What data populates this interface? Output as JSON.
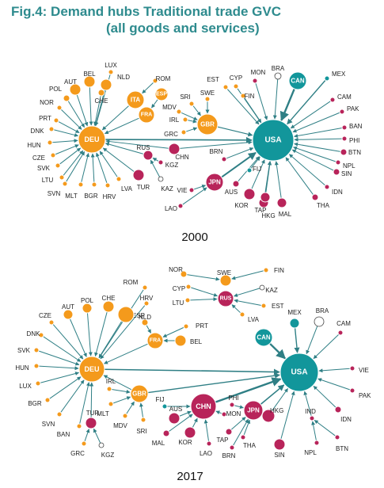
{
  "title": {
    "line1": "Fig.4: Demand hubs Traditional trade GVC",
    "line2": "(all goods and services)"
  },
  "colors": {
    "orange": "#f49a1c",
    "teal": "#12969b",
    "crimson": "#b8245a",
    "edge": "#2f7f85",
    "title": "#2e8b8e"
  },
  "panels": [
    {
      "year": "2000",
      "nodes": [
        {
          "id": "DEU",
          "color": "orange",
          "label_inside": true
        },
        {
          "id": "ITA",
          "color": "orange",
          "label_inside": true
        },
        {
          "id": "ESP",
          "color": "orange",
          "label_inside": true
        },
        {
          "id": "FRA",
          "color": "orange",
          "label_inside": true
        },
        {
          "id": "GBR",
          "color": "orange",
          "label_inside": true
        },
        {
          "id": "USA",
          "color": "teal",
          "label_inside": true
        },
        {
          "id": "CAN",
          "color": "teal",
          "label_inside": true
        },
        {
          "id": "JPN",
          "color": "crimson",
          "label_inside": true
        },
        {
          "id": "LUX",
          "color": "orange"
        },
        {
          "id": "BEL",
          "color": "orange"
        },
        {
          "id": "NLD",
          "color": "orange"
        },
        {
          "id": "AUT",
          "color": "orange"
        },
        {
          "id": "POL",
          "color": "orange"
        },
        {
          "id": "CHE",
          "color": "orange"
        },
        {
          "id": "NOR",
          "color": "orange"
        },
        {
          "id": "PRT",
          "color": "orange"
        },
        {
          "id": "DNK",
          "color": "orange"
        },
        {
          "id": "HUN",
          "color": "orange"
        },
        {
          "id": "CZE",
          "color": "orange"
        },
        {
          "id": "SVK",
          "color": "orange"
        },
        {
          "id": "LTU",
          "color": "orange"
        },
        {
          "id": "SVN",
          "color": "orange"
        },
        {
          "id": "MLT",
          "color": "orange"
        },
        {
          "id": "BGR",
          "color": "orange"
        },
        {
          "id": "HRV",
          "color": "orange"
        },
        {
          "id": "LVA",
          "color": "orange"
        },
        {
          "id": "ROM",
          "color": "orange"
        },
        {
          "id": "TUR",
          "color": "crimson"
        },
        {
          "id": "RUS",
          "color": "crimson"
        },
        {
          "id": "KGZ",
          "color": "crimson"
        },
        {
          "id": "KAZ",
          "color": "hollow"
        },
        {
          "id": "SRI",
          "color": "orange"
        },
        {
          "id": "MDV",
          "color": "orange"
        },
        {
          "id": "IRL",
          "color": "orange"
        },
        {
          "id": "GRC",
          "color": "orange"
        },
        {
          "id": "SWE",
          "color": "orange"
        },
        {
          "id": "EST",
          "color": "orange"
        },
        {
          "id": "CYP",
          "color": "orange"
        },
        {
          "id": "FIN",
          "color": "orange"
        },
        {
          "id": "MON",
          "color": "crimson"
        },
        {
          "id": "BRA",
          "color": "hollow"
        },
        {
          "id": "MEX",
          "color": "teal"
        },
        {
          "id": "CAM",
          "color": "crimson"
        },
        {
          "id": "PAK",
          "color": "crimson"
        },
        {
          "id": "BAN",
          "color": "crimson"
        },
        {
          "id": "PHI",
          "color": "crimson"
        },
        {
          "id": "BTN",
          "color": "crimson"
        },
        {
          "id": "NPL",
          "color": "crimson"
        },
        {
          "id": "SIN",
          "color": "crimson"
        },
        {
          "id": "IDN",
          "color": "crimson"
        },
        {
          "id": "THA",
          "color": "crimson"
        },
        {
          "id": "MAL",
          "color": "crimson"
        },
        {
          "id": "HKG",
          "color": "crimson"
        },
        {
          "id": "TAP",
          "color": "crimson"
        },
        {
          "id": "KOR",
          "color": "crimson"
        },
        {
          "id": "AUS",
          "color": "crimson"
        },
        {
          "id": "FIJ",
          "color": "teal"
        },
        {
          "id": "BRN",
          "color": "crimson"
        },
        {
          "id": "CHN",
          "color": "crimson"
        },
        {
          "id": "VIE",
          "color": "crimson"
        },
        {
          "id": "LAO",
          "color": "crimson"
        }
      ]
    },
    {
      "year": "2017",
      "nodes": [
        {
          "id": "DEU",
          "color": "orange",
          "label_inside": true
        },
        {
          "id": "FRA",
          "color": "orange",
          "label_inside": true
        },
        {
          "id": "GBR",
          "color": "orange",
          "label_inside": true
        },
        {
          "id": "RUS",
          "color": "crimson",
          "label_inside": true
        },
        {
          "id": "USA",
          "color": "teal",
          "label_inside": true
        },
        {
          "id": "CAN",
          "color": "teal",
          "label_inside": true
        },
        {
          "id": "CHN",
          "color": "crimson",
          "label_inside": true
        },
        {
          "id": "JPN",
          "color": "crimson",
          "label_inside": true
        },
        {
          "id": "NOR",
          "color": "orange"
        },
        {
          "id": "SWE",
          "color": "orange"
        },
        {
          "id": "FIN",
          "color": "orange"
        },
        {
          "id": "CYP",
          "color": "orange"
        },
        {
          "id": "KAZ",
          "color": "hollow"
        },
        {
          "id": "LTU",
          "color": "orange"
        },
        {
          "id": "EST",
          "color": "orange"
        },
        {
          "id": "LVA",
          "color": "orange"
        },
        {
          "id": "ROM",
          "color": "orange"
        },
        {
          "id": "HRV",
          "color": "orange"
        },
        {
          "id": "AUT",
          "color": "orange"
        },
        {
          "id": "POL",
          "color": "orange"
        },
        {
          "id": "CHE",
          "color": "orange"
        },
        {
          "id": "CZE",
          "color": "orange"
        },
        {
          "id": "ESP",
          "color": "orange"
        },
        {
          "id": "NLD",
          "color": "orange"
        },
        {
          "id": "PRT",
          "color": "orange"
        },
        {
          "id": "BEL",
          "color": "orange"
        },
        {
          "id": "DNK",
          "color": "orange"
        },
        {
          "id": "SVK",
          "color": "orange"
        },
        {
          "id": "HUN",
          "color": "orange"
        },
        {
          "id": "LUX",
          "color": "orange"
        },
        {
          "id": "BGR",
          "color": "orange"
        },
        {
          "id": "SVN",
          "color": "orange"
        },
        {
          "id": "BAN",
          "color": "orange"
        },
        {
          "id": "TUR",
          "color": "crimson"
        },
        {
          "id": "GRC",
          "color": "orange"
        },
        {
          "id": "KGZ",
          "color": "hollow"
        },
        {
          "id": "IRL",
          "color": "orange"
        },
        {
          "id": "MLT",
          "color": "orange"
        },
        {
          "id": "MDV",
          "color": "orange"
        },
        {
          "id": "SRI",
          "color": "orange"
        },
        {
          "id": "FIJ",
          "color": "teal"
        },
        {
          "id": "AUS",
          "color": "crimson"
        },
        {
          "id": "MAL",
          "color": "crimson"
        },
        {
          "id": "KOR",
          "color": "crimson"
        },
        {
          "id": "LAO",
          "color": "crimson"
        },
        {
          "id": "MON",
          "color": "crimson"
        },
        {
          "id": "PHI",
          "color": "crimson"
        },
        {
          "id": "TAP",
          "color": "crimson"
        },
        {
          "id": "BRN",
          "color": "crimson"
        },
        {
          "id": "THA",
          "color": "crimson"
        },
        {
          "id": "HKG",
          "color": "crimson"
        },
        {
          "id": "SIN",
          "color": "crimson"
        },
        {
          "id": "IND",
          "color": "crimson"
        },
        {
          "id": "NPL",
          "color": "crimson"
        },
        {
          "id": "BTN",
          "color": "crimson"
        },
        {
          "id": "IDN",
          "color": "crimson"
        },
        {
          "id": "PAK",
          "color": "crimson"
        },
        {
          "id": "VIE",
          "color": "crimson"
        },
        {
          "id": "CAM",
          "color": "crimson"
        },
        {
          "id": "MEX",
          "color": "teal"
        },
        {
          "id": "BRA",
          "color": "hollow"
        }
      ]
    }
  ]
}
